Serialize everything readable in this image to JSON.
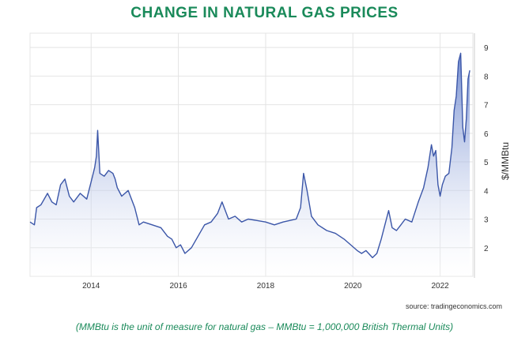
{
  "title": "CHANGE IN NATURAL GAS PRICES",
  "source": "source: tradingeconomics.com",
  "footnote": "(MMBtu is the unit of measure for natural gas – MMBtu = 1,000,000 British Thermal Units)",
  "colors": {
    "title": "#1a8a5a",
    "footnote": "#1a8a5a",
    "line": "#3b56a8",
    "fill_top": "#5a78c8",
    "fill_bottom": "#ffffff",
    "grid": "#e4e4e4",
    "axis_text": "#333333"
  },
  "chart_data": {
    "type": "area",
    "title": "",
    "xlabel": "",
    "ylabel": "$/MMBtu",
    "xlim": [
      2012.6,
      2022.75
    ],
    "ylim": [
      1.0,
      9.5
    ],
    "x_ticks": [
      2014,
      2016,
      2018,
      2020,
      2022
    ],
    "x_tick_labels": [
      "2014",
      "2016",
      "2018",
      "2020",
      "2022"
    ],
    "y_ticks": [
      2,
      3,
      4,
      5,
      6,
      7,
      8,
      9
    ],
    "y_tick_labels": [
      "2",
      "3",
      "4",
      "5",
      "6",
      "7",
      "8",
      "9"
    ],
    "y_axis_position": "right",
    "grid": true,
    "series": [
      {
        "x": [
          2012.6,
          2012.7,
          2012.75,
          2012.85,
          2013.0,
          2013.1,
          2013.2,
          2013.3,
          2013.4,
          2013.5,
          2013.6,
          2013.75,
          2013.9,
          2014.0,
          2014.08,
          2014.12,
          2014.15,
          2014.2,
          2014.3,
          2014.4,
          2014.5,
          2014.55,
          2014.6,
          2014.7,
          2014.85,
          2015.0,
          2015.1,
          2015.2,
          2015.4,
          2015.6,
          2015.75,
          2015.85,
          2015.95,
          2016.05,
          2016.15,
          2016.3,
          2016.45,
          2016.6,
          2016.75,
          2016.9,
          2017.0,
          2017.15,
          2017.3,
          2017.45,
          2017.6,
          2017.8,
          2018.0,
          2018.2,
          2018.4,
          2018.55,
          2018.7,
          2018.8,
          2018.87,
          2018.95,
          2019.05,
          2019.2,
          2019.4,
          2019.6,
          2019.8,
          2019.95,
          2020.1,
          2020.2,
          2020.3,
          2020.45,
          2020.55,
          2020.65,
          2020.75,
          2020.82,
          2020.9,
          2021.0,
          2021.1,
          2021.2,
          2021.35,
          2021.5,
          2021.62,
          2021.72,
          2021.8,
          2021.85,
          2021.9,
          2021.95,
          2022.0,
          2022.05,
          2022.12,
          2022.2,
          2022.27,
          2022.32,
          2022.37,
          2022.42,
          2022.47,
          2022.52,
          2022.56,
          2022.6,
          2022.64,
          2022.68
        ],
        "y": [
          2.9,
          2.8,
          3.4,
          3.5,
          3.9,
          3.6,
          3.5,
          4.2,
          4.4,
          3.8,
          3.6,
          3.9,
          3.7,
          4.3,
          4.8,
          5.2,
          6.1,
          4.6,
          4.5,
          4.7,
          4.6,
          4.4,
          4.1,
          3.8,
          4.0,
          3.4,
          2.8,
          2.9,
          2.8,
          2.7,
          2.4,
          2.3,
          2.0,
          2.1,
          1.8,
          2.0,
          2.4,
          2.8,
          2.9,
          3.2,
          3.6,
          3.0,
          3.1,
          2.9,
          3.0,
          2.95,
          2.9,
          2.8,
          2.9,
          2.95,
          3.0,
          3.4,
          4.6,
          4.0,
          3.1,
          2.8,
          2.6,
          2.5,
          2.3,
          2.1,
          1.9,
          1.8,
          1.9,
          1.65,
          1.8,
          2.3,
          2.9,
          3.3,
          2.7,
          2.6,
          2.8,
          3.0,
          2.9,
          3.6,
          4.1,
          4.8,
          5.6,
          5.2,
          5.4,
          4.2,
          3.8,
          4.2,
          4.5,
          4.6,
          5.5,
          6.8,
          7.3,
          8.5,
          8.8,
          6.2,
          5.7,
          6.5,
          7.9,
          8.2
        ]
      }
    ]
  }
}
